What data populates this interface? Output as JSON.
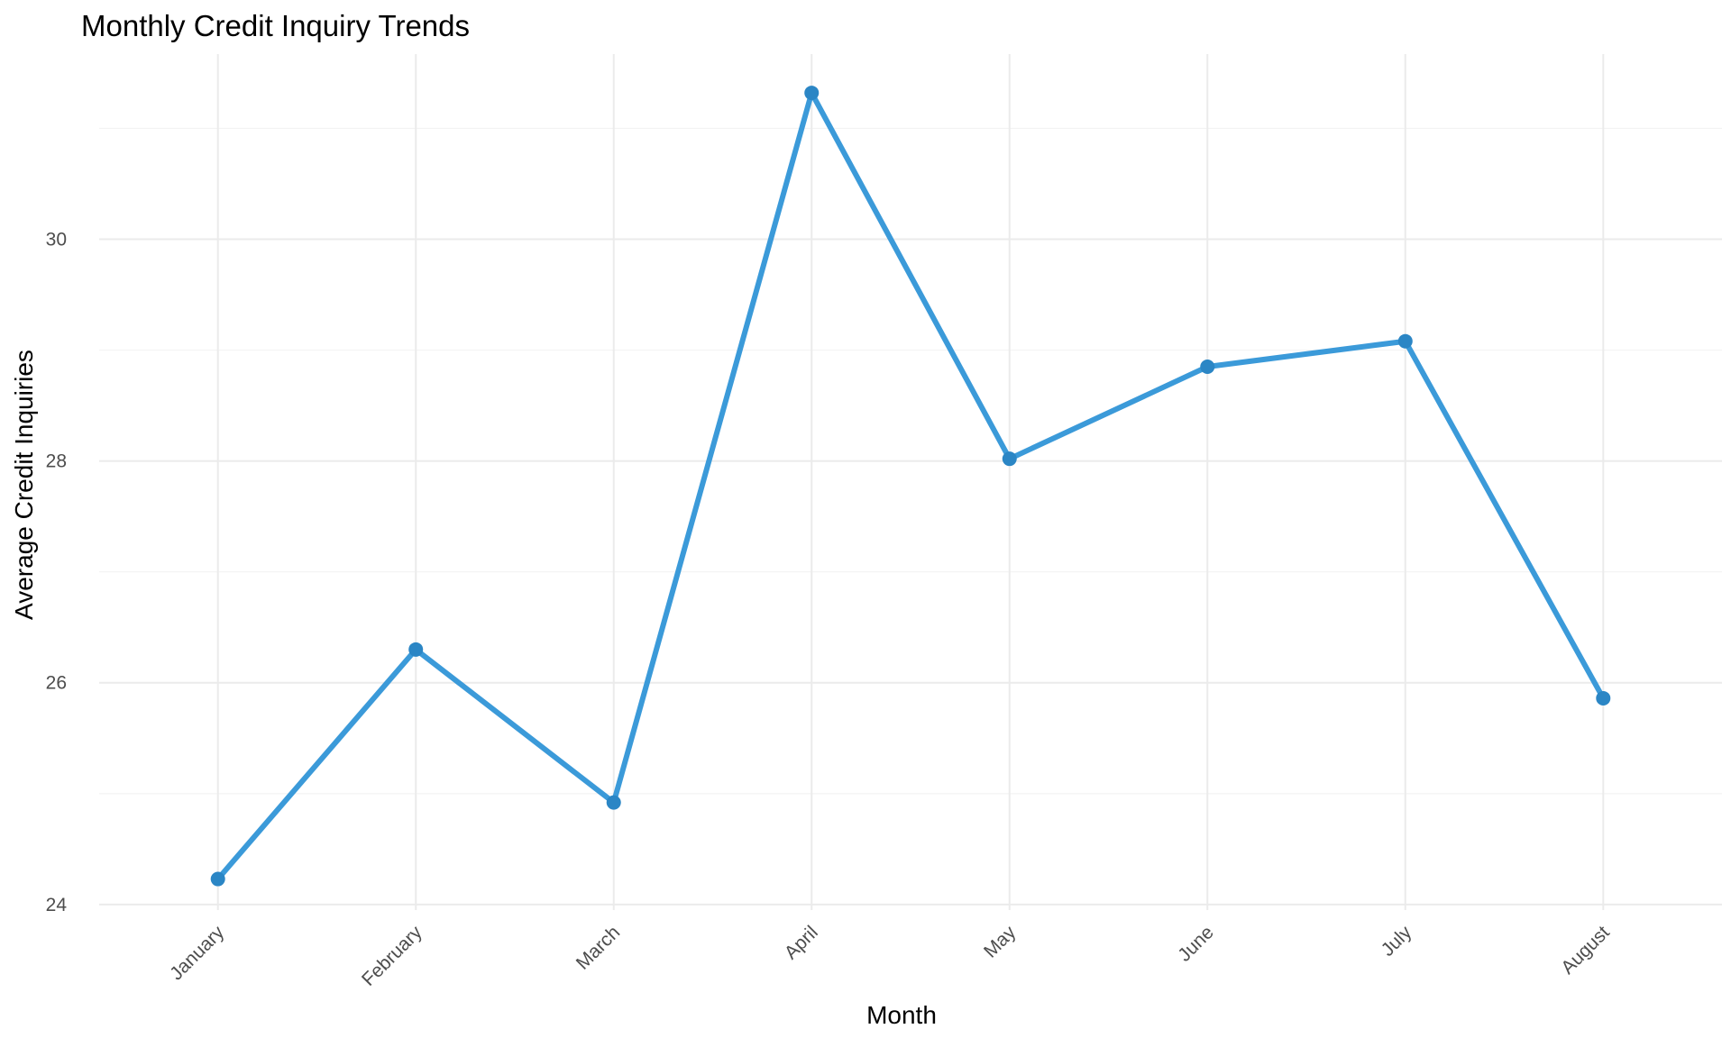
{
  "chart_data": {
    "type": "line",
    "title": "Monthly Credit Inquiry Trends",
    "xlabel": "Month",
    "ylabel": "Average Credit Inquiries",
    "categories": [
      "January",
      "February",
      "March",
      "April",
      "May",
      "June",
      "July",
      "August"
    ],
    "series": [
      {
        "values": [
          24.23,
          26.3,
          24.92,
          31.32,
          28.02,
          28.85,
          29.08,
          25.86
        ]
      }
    ],
    "ylim": [
      23.95,
      31.67
    ],
    "yticks": [
      24,
      26,
      28,
      30
    ],
    "y_minor_ticks": [
      25,
      27,
      29,
      31
    ],
    "grid": true,
    "legend": "none",
    "line_color": "#3b9ad9",
    "x_tick_rotation": 45
  }
}
